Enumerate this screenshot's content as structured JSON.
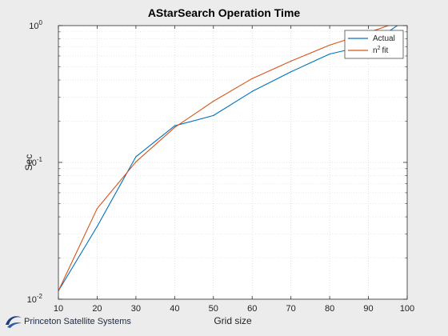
{
  "chart_data": {
    "type": "line",
    "title": "AStarSearch Operation Time",
    "xlabel": "Grid size",
    "ylabel": "Sec",
    "xlim": [
      10,
      100
    ],
    "ylim": [
      0.01,
      1
    ],
    "yscale": "log",
    "grid": "major-and-minor (dotted)",
    "legend_position": "top-right",
    "x_ticks": [
      "10",
      "20",
      "30",
      "40",
      "50",
      "60",
      "70",
      "80",
      "90",
      "100"
    ],
    "y_ticks": [
      {
        "value": 0.01,
        "base": "10",
        "exp": "-2"
      },
      {
        "value": 0.1,
        "base": "10",
        "exp": "-1"
      },
      {
        "value": 1,
        "base": "10",
        "exp": "0"
      }
    ],
    "x": [
      10,
      20,
      30,
      40,
      50,
      60,
      70,
      80,
      90,
      100
    ],
    "series": [
      {
        "name": "Actual",
        "color": "#0072bd",
        "values": [
          0.0115,
          0.034,
          0.11,
          0.185,
          0.22,
          0.33,
          0.46,
          0.62,
          0.72,
          1.12
        ]
      },
      {
        "name": "fit",
        "name_prefix": "n",
        "name_sup": "2",
        "color": "#d95319",
        "values": [
          0.0115,
          0.046,
          0.101,
          0.18,
          0.28,
          0.41,
          0.55,
          0.72,
          0.89,
          1.12
        ]
      }
    ]
  },
  "branding": {
    "text": "Princeton Satellite Systems",
    "logo_icon": "psss-swoosh-logo"
  }
}
